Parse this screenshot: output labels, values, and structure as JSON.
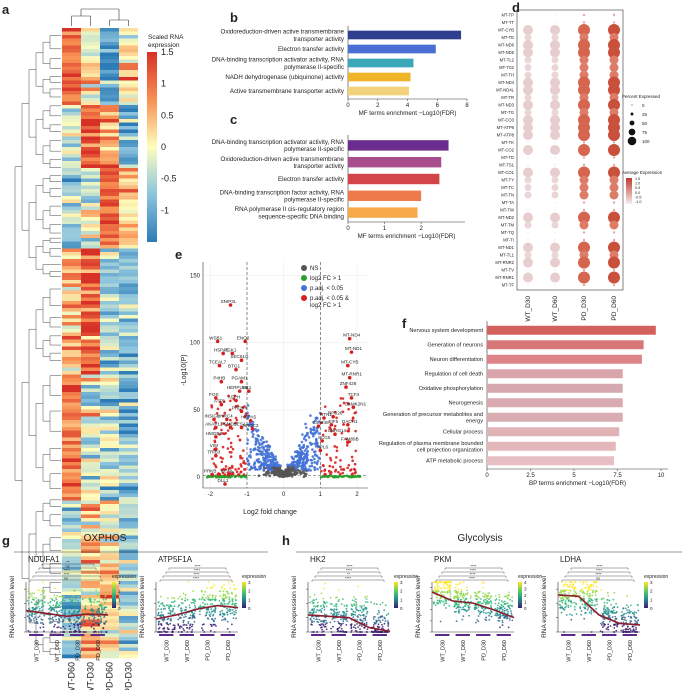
{
  "panel_labels": [
    "a",
    "b",
    "c",
    "d",
    "e",
    "f",
    "g",
    "h"
  ],
  "heatmap": {
    "legend_title_1": "Scaled RNA",
    "legend_title_2": "expression",
    "legend_ticks": [
      "1.5",
      "1",
      "0.5",
      "0",
      "-0.5",
      "-1"
    ],
    "legend_tick_values": [
      1.5,
      1,
      0.5,
      0,
      -0.5,
      -1
    ],
    "columns": [
      "WT-D60",
      "WT-D30",
      "PD-D60",
      "PD-D30"
    ],
    "scale_min": -1.5,
    "scale_max": 1.5
  },
  "panel_b": {
    "xlabel": "MF terms enrichment −Log10(FDR)",
    "xticks": [
      0,
      2,
      4,
      6,
      8
    ],
    "categories": [
      "Oxidoreduction-driven active transmembrane transporter activity",
      "Electron transfer activity",
      "DNA-binding transcription activator activity, RNA polymerase II-specific",
      "NADH dehydrogenase (ubiquinone) activity",
      "Active transmembrane transporter activity"
    ],
    "display_lines": [
      [
        "Oxidoreduction-driven active transmembrane",
        "transporter activity"
      ],
      [
        "Electron transfer activity"
      ],
      [
        "DNA-binding transcription activator activity, RNA",
        "polymerase II-specific"
      ],
      [
        "NADH dehydrogenase (ubiquinone) activity"
      ],
      [
        "Active transmembrane transporter activity"
      ]
    ],
    "values": [
      7.6,
      5.9,
      4.4,
      4.2,
      4.1
    ],
    "colors": [
      "#2f3f8f",
      "#4a6fd4",
      "#3aa8b8",
      "#f0b429",
      "#f2d27a"
    ]
  },
  "panel_c": {
    "xlabel": "MF terms enrichment −Log10(FDR)",
    "xticks": [
      0,
      1,
      2
    ],
    "categories": [
      "DNA-binding transcription activator activity, RNA polymerase II-specific",
      "Oxidoreduction-driven active transmembrane transporter activity",
      "Electron transfer activity",
      "DNA-binding transcription factor activity, RNA polymerase II-specific",
      "RNA polymerase II cis-regulatory region sequence-specific DNA binding"
    ],
    "display_lines": [
      [
        "DNA-binding transcription activator activity, RNA",
        "polymerase II-specific"
      ],
      [
        "Oxidoreduction-driven active transmembrane",
        "transporter activity"
      ],
      [
        "Electron transfer activity"
      ],
      [
        "DNA-binding transcription factor activity, RNA",
        "polymerase II-specific"
      ],
      [
        "RNA polymerase II cis-regulatory region",
        "sequence-specific DNA binding"
      ]
    ],
    "values": [
      2.75,
      2.55,
      2.5,
      2.0,
      1.9
    ],
    "colors": [
      "#6a2c8e",
      "#a84e8f",
      "#d1454a",
      "#ee7b4a",
      "#f7a94a"
    ]
  },
  "panel_d": {
    "genes": [
      "MT-TP",
      "MT-TT",
      "MT-CYB",
      "MT-TE",
      "MT-ND6",
      "MT-ND5",
      "MT-TL2",
      "MT-TS2",
      "MT-TH",
      "MT-ND4",
      "MT-ND4L",
      "MT-TR",
      "MT-ND3",
      "MT-TG",
      "MT-CO3",
      "MT-ATP6",
      "MT-ATP8",
      "MT-TK",
      "MT-CO2",
      "MT-TD",
      "MT-TS1",
      "MT-CO1",
      "MT-TY",
      "MT-TC",
      "MT-TN",
      "MT-TA",
      "MT-TW",
      "MT-ND2",
      "MT-TM",
      "MT-TQ",
      "MT-TI",
      "MT-ND1",
      "MT-TL1",
      "MT-RNR2",
      "MT-TV",
      "MT-RNR1",
      "MT-TF"
    ],
    "groups": [
      "WT_D30",
      "WT_D60",
      "PD_D30",
      "PD_D60"
    ],
    "legend_pct_title": "Percent Expressed",
    "legend_pct": [
      "0",
      "25",
      "50",
      "75",
      "100"
    ],
    "legend_pct_values": [
      0,
      25,
      50,
      75,
      100
    ],
    "legend_avg_title": "Average Expression",
    "legend_avg": [
      "1.5",
      "1.0",
      "0.5",
      "0.0",
      "-0.5",
      "-1.0"
    ]
  },
  "panel_e": {
    "xlabel": "Log2 fold change",
    "ylabel": "-Log10(P)",
    "xticks": [
      -2,
      -1,
      0,
      1,
      2
    ],
    "yticks": [
      0,
      50,
      100,
      150
    ],
    "legend": [
      "NS",
      "log2 FC > 1",
      "p.adj. < 0.05",
      "p.adj. < 0.05 &",
      "log2 FC > 1"
    ],
    "legend_colors": [
      "#555555",
      "#2aa02a",
      "#4472d6",
      "#d62020"
    ],
    "labels_left": [
      "SNIP3L",
      "WSB1",
      "ENO2",
      "HSPA5",
      "PGK1",
      "SEC61G",
      "TCEAL7",
      "BTG1",
      "P4HB",
      "PGAM1",
      "HERPUD1",
      "HK1",
      "FOS",
      "ASPH",
      "ATF5",
      "PRDX4",
      "INSIG1",
      "HNRC4",
      "HSPA5",
      "AKAP12",
      "PSMD1",
      "HES1",
      "NRDC3",
      "HMGB2",
      "VIM",
      "TRIB3",
      "PRKB",
      "KCNI",
      "DLL1"
    ],
    "labels_right": [
      "MT-ND4",
      "MT-ND1",
      "MT-CYB",
      "MT-RNR1",
      "ZNF428",
      "TCF4",
      "CAMK2N1",
      "RTN1",
      "RPS26",
      "C4orf48",
      "EIF5",
      "DACH1",
      "SNHG14",
      "SCG5",
      "RPL6",
      "FAM89B"
    ],
    "volcano_left": [
      [
        -1.45,
        128,
        "SNIP3L"
      ],
      [
        -1.8,
        101,
        "WSB1"
      ],
      [
        -1.05,
        101,
        "ENO2"
      ],
      [
        -1.65,
        92,
        "HSPA5"
      ],
      [
        -1.4,
        92,
        "PGK1"
      ],
      [
        -1.15,
        87,
        "SEC61G"
      ],
      [
        -1.75,
        83,
        "TCEAL7"
      ],
      [
        -1.3,
        80,
        "BTG1"
      ],
      [
        -1.7,
        71,
        "P4HB"
      ],
      [
        -1.15,
        71,
        "PGAM1"
      ],
      [
        -1.2,
        64,
        "HERPUD1"
      ],
      [
        -0.95,
        64,
        "HK1"
      ],
      [
        -1.85,
        59,
        "FOS"
      ],
      [
        -1.3,
        57,
        "ASPH"
      ],
      [
        -1.7,
        54,
        "ATF5"
      ],
      [
        -1.15,
        49,
        "PRDX4"
      ],
      [
        -1.9,
        43,
        "INSIG1"
      ],
      [
        -1.55,
        43,
        "HNRC4"
      ],
      [
        -0.9,
        42,
        "HSPA5"
      ],
      [
        -1.85,
        37,
        "AKAP12"
      ],
      [
        -1.45,
        37,
        "PSMD1"
      ],
      [
        -1.15,
        37,
        "HES1"
      ],
      [
        -0.85,
        36,
        "NRDC3"
      ],
      [
        -1.85,
        30,
        "HMGB2"
      ],
      [
        -1.85,
        21,
        "VIM"
      ],
      [
        -1.85,
        16,
        "TRIB3"
      ],
      [
        -1.95,
        2,
        "PRKB"
      ],
      [
        -1.5,
        2,
        "KCNI"
      ],
      [
        -1.6,
        -5,
        "DLL1"
      ]
    ],
    "volcano_right": [
      [
        1.8,
        103,
        "MT-ND4"
      ],
      [
        1.85,
        93,
        "MT-ND1"
      ],
      [
        1.75,
        83,
        "MT-CYB"
      ],
      [
        1.8,
        74,
        "MT-RNR1"
      ],
      [
        1.7,
        67,
        "ZNF428"
      ],
      [
        1.85,
        59,
        "TCF4"
      ],
      [
        1.9,
        52,
        "CAMK2N1"
      ],
      [
        1.1,
        44,
        "RTN1"
      ],
      [
        1.35,
        45,
        "RPS26"
      ],
      [
        0.95,
        38,
        "C4orf48"
      ],
      [
        1.3,
        39,
        "EIF5"
      ],
      [
        1.75,
        39,
        "DACH1"
      ],
      [
        1.4,
        32,
        "SNHG14"
      ],
      [
        1.05,
        27,
        "SCG5"
      ],
      [
        1.0,
        20,
        "RPL6"
      ],
      [
        1.75,
        26,
        "FAM89B"
      ]
    ]
  },
  "panel_f": {
    "xlabel": "BP terms enrichment −Log10(FDR)",
    "xticks": [
      0,
      2.5,
      5,
      7.5,
      10
    ],
    "categories": [
      "Nervous system development",
      "Generation of neurons",
      "Neuron differentiation",
      "Regulation of cell death",
      "Oxidative phosphorylation",
      "Neurogenesis",
      "Generation of precursor metabolites and energy",
      "Cellular process",
      "Regulation of plasma membrane bounded cell projection organization",
      "ATP metabolic process"
    ],
    "display_lines": [
      [
        "Nervous system development"
      ],
      [
        "Generation of neurons"
      ],
      [
        "Neuron differentiation"
      ],
      [
        "Regulation of cell death"
      ],
      [
        "Oxidative phosphorylation"
      ],
      [
        "Neurogenesis"
      ],
      [
        "Generation of precursor metabolites and",
        "energy"
      ],
      [
        "Cellular process"
      ],
      [
        "Regulation of plasma membrane bounded",
        "cell projection organization"
      ],
      [
        "ATP metabolic process"
      ]
    ],
    "values": [
      9.7,
      9.0,
      8.9,
      7.8,
      7.8,
      7.8,
      7.8,
      7.6,
      7.4,
      7.3
    ],
    "colors": [
      "#d3625f",
      "#d8777a",
      "#dc8487",
      "#d9a5ab",
      "#d4a8ae",
      "#d8a9ae",
      "#d8acb1",
      "#e0b3b7",
      "#e4b7ba",
      "#e8c0c3"
    ]
  },
  "panel_g": {
    "title": "OXPHOS",
    "plots": [
      {
        "gene": "NDUFA1",
        "trend": [
          1.5,
          1.3,
          1.1,
          1.25,
          1.2
        ],
        "legend_ticks": [
          "3",
          "2",
          "1",
          "0"
        ],
        "sig": [
          "ns",
          "****",
          "****",
          "ns",
          "**"
        ]
      },
      {
        "gene": "ATP5F1A",
        "trend": [
          0.9,
          1.2,
          1.6,
          1.85,
          1.7
        ],
        "legend_ticks": [
          "3",
          "2",
          "1",
          "0"
        ],
        "sig": [
          "****",
          "****",
          "****",
          "****"
        ]
      }
    ],
    "ylabel": "RNA expression level",
    "groups": [
      "WT_D30",
      "WT_D60",
      "PD_D30",
      "PD_D60"
    ],
    "legend_title": "expression"
  },
  "panel_h": {
    "title": "Glycolysis",
    "plots": [
      {
        "gene": "HK2",
        "trend": [
          1.2,
          1.1,
          1.0,
          0.3,
          0.05
        ],
        "legend_ticks": [
          "3",
          "2",
          "1",
          "0"
        ],
        "sig": [
          "****",
          "**",
          "****",
          "****"
        ]
      },
      {
        "gene": "PKM",
        "trend": [
          3.6,
          2.8,
          2.6,
          2.0,
          1.3
        ],
        "legend_ticks": [
          "4",
          "3",
          "2",
          "1",
          "0"
        ],
        "sig": [
          "****",
          "****",
          "****",
          "****"
        ]
      },
      {
        "gene": "LDHA",
        "trend": [
          2.6,
          2.5,
          1.2,
          0.6,
          0.5
        ],
        "legend_ticks": [
          "3",
          "2",
          "1",
          "0"
        ],
        "sig": [
          "ns",
          "****",
          "****",
          "****"
        ]
      }
    ],
    "ylabel": "RNA expression level",
    "groups": [
      "WT_D30",
      "WT_D60",
      "PD_D30",
      "PD_D60"
    ],
    "legend_title": "expression"
  },
  "colors": {
    "bar_blue": "#3b5bdb",
    "red": "#d62020",
    "green": "#2aa02a",
    "blue": "#4472d6",
    "grey": "#555555",
    "dark_red": "#8b1d2c"
  }
}
